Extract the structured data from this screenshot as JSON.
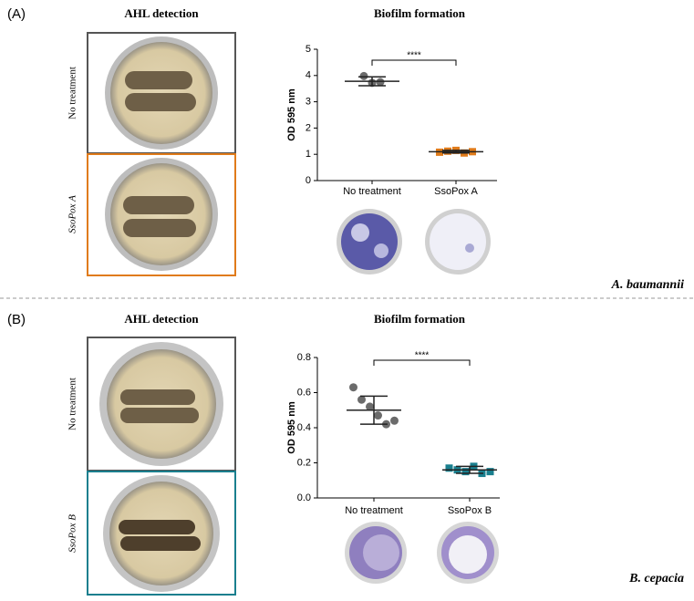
{
  "panels": [
    {
      "label": "(A)",
      "left_title": "AHL detection",
      "right_title": "Biofilm formation",
      "plate_labels": [
        "No treatment",
        "SsoPox A"
      ],
      "organism": "A. baumannii"
    },
    {
      "label": "(B)",
      "left_title": "AHL detection",
      "right_title": "Biofilm formation",
      "plate_labels": [
        "No treatment",
        "SsoPox B"
      ],
      "organism": "B. cepacia"
    }
  ],
  "chart_data": [
    {
      "type": "dot",
      "ylabel": "OD 595 nm",
      "categories": [
        "No treatment",
        "SsoPox A"
      ],
      "values": [
        [
          3.98,
          3.72,
          3.75
        ],
        [
          1.08,
          1.12,
          1.15,
          1.05,
          1.1
        ]
      ],
      "means": [
        3.78,
        1.1
      ],
      "errors": [
        0.17,
        0.05
      ],
      "colors": [
        "#6b6b6b",
        "#e07b1a"
      ],
      "significance": "****",
      "ylim": [
        0,
        5
      ],
      "yticks": [
        0,
        1,
        2,
        3,
        4,
        5
      ]
    },
    {
      "type": "dot",
      "ylabel": "OD 595 nm",
      "categories": [
        "No treatment",
        "SsoPox B"
      ],
      "values": [
        [
          0.63,
          0.56,
          0.52,
          0.47,
          0.42,
          0.44
        ],
        [
          0.17,
          0.16,
          0.15,
          0.18,
          0.14,
          0.15
        ]
      ],
      "means": [
        0.5,
        0.16
      ],
      "errors": [
        0.08,
        0.02
      ],
      "colors": [
        "#6b6b6b",
        "#1a7f8e"
      ],
      "significance": "****",
      "ylim": [
        0,
        0.8
      ],
      "yticks": [
        {
          "value": 0,
          "label": "0.0"
        },
        0.2,
        0.4,
        0.6,
        0.8
      ]
    }
  ]
}
